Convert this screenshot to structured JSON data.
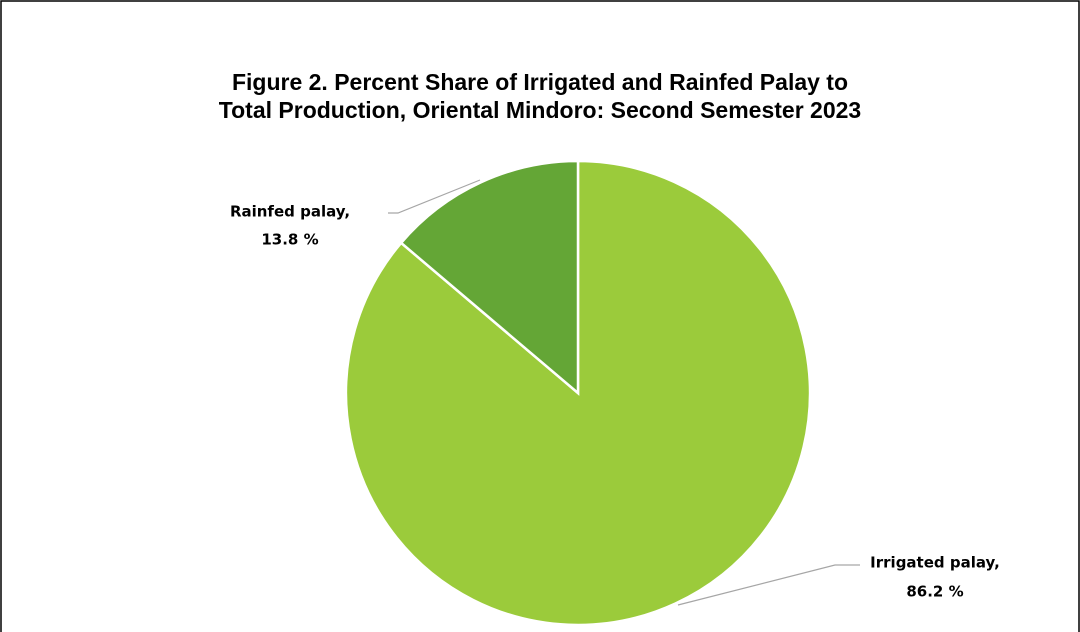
{
  "chart_data": {
    "type": "pie",
    "title": "Figure 2. Percent Share of Irrigated and Rainfed Palay to\nTotal Production, Oriental Mindoro: Second Semester 2023",
    "categories": [
      "Irrigated palay,",
      "Rainfed palay,"
    ],
    "values": [
      86.2,
      13.8
    ],
    "value_labels": [
      "86.2 %",
      "13.8 %"
    ],
    "colors": [
      "#9bcb3b",
      "#64a636"
    ]
  }
}
